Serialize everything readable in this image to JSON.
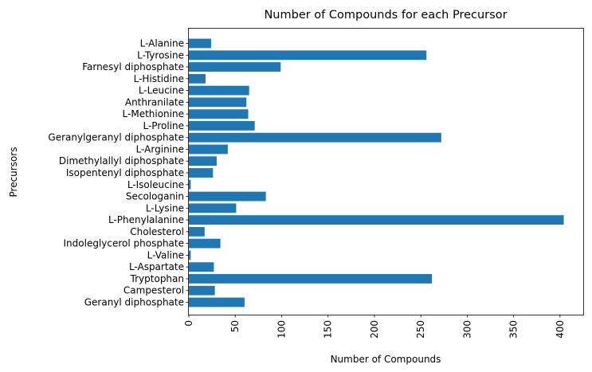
{
  "chart_data": {
    "type": "bar",
    "orientation": "horizontal",
    "title": "Number of Compounds for each Precursor",
    "xlabel": "Number of Compounds",
    "ylabel": "Precursors",
    "xlim": [
      0,
      425
    ],
    "xticks": [
      "0",
      "50",
      "100",
      "150",
      "200",
      "250",
      "300",
      "350",
      "400"
    ],
    "grid": false,
    "bar_color": "#1f77b4",
    "categories": [
      "Geranyl diphosphate",
      "Campesterol",
      "Tryptophan",
      "L-Aspartate",
      "L-Valine",
      "Indoleglycerol phosphate",
      "Cholesterol",
      "L-Phenylalanine",
      "L-Lysine",
      "Secologanin",
      "L-Isoleucine",
      "Isopentenyl diphosphate",
      "Dimethylallyl diphosphate",
      "L-Arginine",
      "Geranylgeranyl diphosphate",
      "L-Proline",
      "L-Methionine",
      "Anthranilate",
      "L-Leucine",
      "L-Histidine",
      "Farnesyl diphosphate",
      "L-Tyrosine",
      "L-Alanine"
    ],
    "values": [
      60,
      28,
      262,
      27,
      2,
      34,
      17,
      404,
      51,
      83,
      2,
      26,
      30,
      42,
      272,
      71,
      64,
      62,
      65,
      18,
      99,
      256,
      24
    ]
  }
}
